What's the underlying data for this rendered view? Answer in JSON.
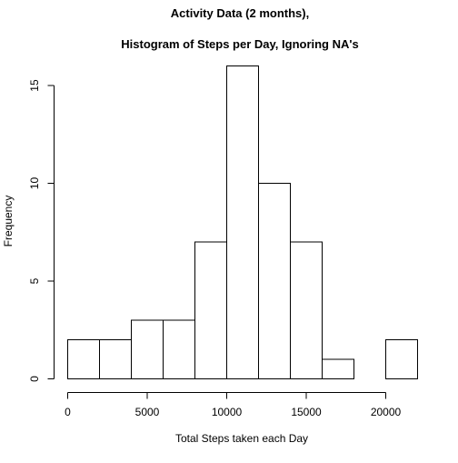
{
  "chart_data": {
    "type": "bar",
    "title_lines": [
      "Activity Data (2 months),",
      "Histogram of Steps per Day, Ignoring NA's"
    ],
    "xlabel": "Total Steps taken each Day",
    "ylabel": "Frequency",
    "bin_edges": [
      0,
      2000,
      4000,
      6000,
      8000,
      10000,
      12000,
      14000,
      16000,
      18000,
      20000,
      22000
    ],
    "values": [
      2,
      2,
      3,
      3,
      7,
      16,
      10,
      7,
      1,
      0,
      2
    ],
    "x_ticks": [
      0,
      5000,
      10000,
      15000,
      20000
    ],
    "y_ticks": [
      0,
      5,
      10,
      15
    ],
    "xlim": [
      0,
      22000
    ],
    "ylim": [
      0,
      16
    ],
    "grid": false,
    "bar_fill": "#ffffff",
    "bar_stroke": "#000000"
  }
}
